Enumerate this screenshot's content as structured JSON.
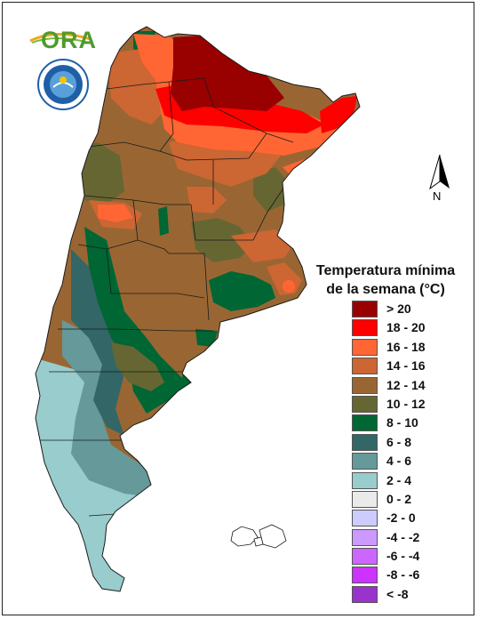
{
  "title": {
    "line1": "Temperatura mínima",
    "line2": "de la semana (°C)"
  },
  "logos": {
    "ora_text": "ORA",
    "smn_emblem": "smn-emblem"
  },
  "north_arrow": {
    "letter": "N"
  },
  "colors": {
    "gt20": "#990000",
    "r18_20": "#ff0000",
    "r16_18": "#ff6633",
    "r14_16": "#cc6633",
    "r12_14": "#996633",
    "r10_12": "#666633",
    "r8_10": "#006633",
    "r6_8": "#336666",
    "r4_6": "#669999",
    "r2_4": "#99cccc",
    "r0_2": "#eaeaea",
    "rn2_0": "#ccccff",
    "rn4_n2": "#cc99ff",
    "rn6_n4": "#cc66ff",
    "rn8_n6": "#cc33ff",
    "ltn8": "#9933cc"
  },
  "legend": [
    {
      "label": "> 20",
      "color": "#990000"
    },
    {
      "label": "18 - 20",
      "color": "#ff0000"
    },
    {
      "label": "16 - 18",
      "color": "#ff6633"
    },
    {
      "label": "14 - 16",
      "color": "#cc6633"
    },
    {
      "label": "12 - 14",
      "color": "#996633"
    },
    {
      "label": "10 - 12",
      "color": "#666633"
    },
    {
      "label": "8 - 10",
      "color": "#006633"
    },
    {
      "label": "6 - 8",
      "color": "#336666"
    },
    {
      "label": "4 - 6",
      "color": "#669999"
    },
    {
      "label": "2 - 4",
      "color": "#99cccc"
    },
    {
      "label": "0 - 2",
      "color": "#eaeaea"
    },
    {
      "label": "-2 - 0",
      "color": "#ccccff"
    },
    {
      "label": "-4 - -2",
      "color": "#cc99ff"
    },
    {
      "label": "-6 - -4",
      "color": "#cc66ff"
    },
    {
      "label": "-8 - -6",
      "color": "#cc33ff"
    },
    {
      "label": "< -8",
      "color": "#9933cc"
    }
  ]
}
